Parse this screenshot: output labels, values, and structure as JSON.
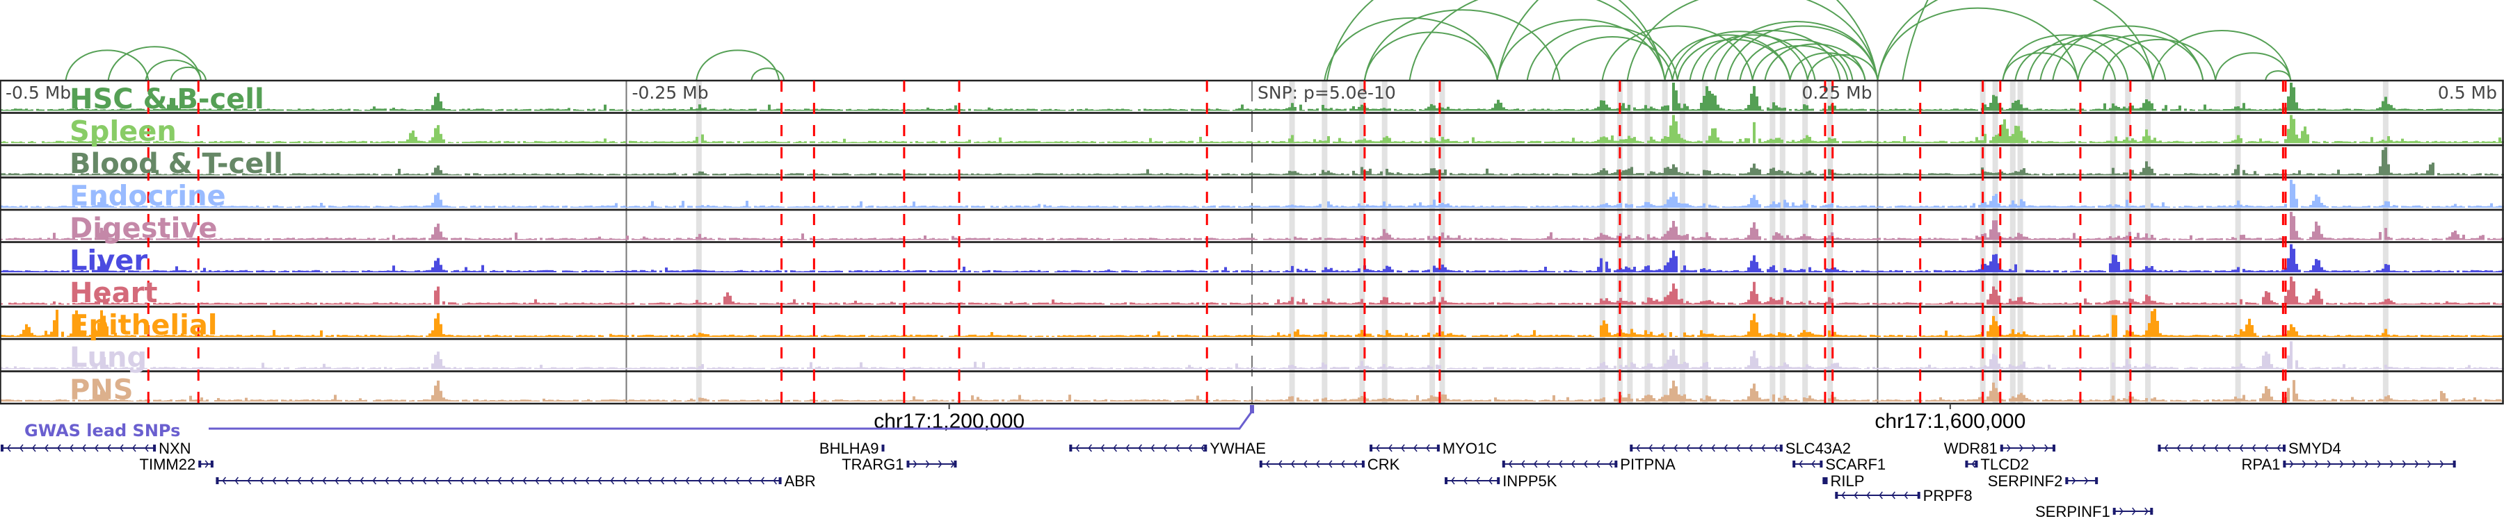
{
  "chart_data": {
    "type": "area",
    "title": "",
    "x_unit": "kb from lead SNP",
    "xlim": [
      -500,
      500
    ],
    "axis_labels": [
      {
        "kb": -500,
        "text": "-0.5 Mb",
        "anchor": "start"
      },
      {
        "kb": -250,
        "text": "-0.25 Mb",
        "anchor": "start"
      },
      {
        "kb": 0,
        "text": "SNP: p=5.0e-10",
        "anchor": "start"
      },
      {
        "kb": 250,
        "text": "0.25 Mb",
        "anchor": "end"
      },
      {
        "kb": 500,
        "text": "0.5 Mb",
        "anchor": "end"
      }
    ],
    "axis_gridlines_kb": [
      -250,
      0,
      250
    ],
    "tracks": [
      {
        "name": "HSC & B-cell",
        "color": "#55a055",
        "peaks": [
          [
            -432,
            0.45
          ],
          [
            -326,
            0.6
          ],
          [
            98,
            0.35
          ],
          [
            140,
            0.2
          ],
          [
            168,
            0.95
          ],
          [
            181,
            0.6
          ],
          [
            184,
            0.55
          ],
          [
            200,
            0.85
          ],
          [
            296,
            0.4
          ],
          [
            305,
            0.3
          ],
          [
            357,
            0.3
          ],
          [
            415,
            1.0
          ],
          [
            452,
            0.3
          ]
        ]
      },
      {
        "name": "Spleen",
        "color": "#88cc66",
        "peaks": [
          [
            -326,
            0.6
          ],
          [
            -336,
            0.4
          ],
          [
            168,
            1.0
          ],
          [
            184,
            0.5
          ],
          [
            200,
            0.7
          ],
          [
            300,
            0.8
          ],
          [
            305,
            0.5
          ],
          [
            357,
            0.3
          ],
          [
            415,
            1.0
          ],
          [
            420,
            0.5
          ]
        ]
      },
      {
        "name": "Blood & T-cell",
        "color": "#668866",
        "peaks": [
          [
            -326,
            0.3
          ],
          [
            168,
            0.3
          ],
          [
            200,
            0.35
          ],
          [
            357,
            0.35
          ],
          [
            394,
            0.2
          ],
          [
            452,
            0.9
          ],
          [
            471,
            0.4
          ]
        ]
      },
      {
        "name": "Endocrine",
        "color": "#99bbff",
        "peaks": [
          [
            -460,
            0.3
          ],
          [
            -326,
            0.5
          ],
          [
            168,
            0.5
          ],
          [
            200,
            0.4
          ],
          [
            296,
            0.3
          ],
          [
            415,
            1.0
          ],
          [
            425,
            0.45
          ]
        ]
      },
      {
        "name": "Digestive",
        "color": "#c488a8",
        "peaks": [
          [
            -460,
            0.4
          ],
          [
            -326,
            0.55
          ],
          [
            168,
            0.6
          ],
          [
            200,
            0.6
          ],
          [
            296,
            0.55
          ],
          [
            415,
            1.0
          ],
          [
            425,
            0.6
          ],
          [
            480,
            0.3
          ]
        ]
      },
      {
        "name": "Liver",
        "color": "#4b4be0",
        "peaks": [
          [
            -460,
            0.35
          ],
          [
            -326,
            0.45
          ],
          [
            140,
            0.4
          ],
          [
            168,
            0.7
          ],
          [
            200,
            0.55
          ],
          [
            296,
            0.5
          ],
          [
            344,
            0.6
          ],
          [
            415,
            1.0
          ],
          [
            425,
            0.45
          ]
        ]
      },
      {
        "name": "Heart",
        "color": "#d46a7a",
        "peaks": [
          [
            -460,
            0.45
          ],
          [
            -326,
            0.6
          ],
          [
            -210,
            0.4
          ],
          [
            168,
            0.7
          ],
          [
            200,
            0.6
          ],
          [
            296,
            0.6
          ],
          [
            405,
            0.45
          ],
          [
            415,
            1.0
          ],
          [
            425,
            0.55
          ]
        ]
      },
      {
        "name": "Epithelial",
        "color": "#ff9f0f",
        "peaks": [
          [
            -490,
            0.4
          ],
          [
            -478,
            0.9
          ],
          [
            -470,
            0.9
          ],
          [
            -460,
            0.9
          ],
          [
            -326,
            0.8
          ],
          [
            140,
            0.5
          ],
          [
            200,
            0.8
          ],
          [
            296,
            0.6
          ],
          [
            344,
            0.7
          ],
          [
            360,
            1.0
          ],
          [
            398,
            0.6
          ],
          [
            415,
            0.4
          ]
        ]
      },
      {
        "name": "Lung",
        "color": "#d8d0e8",
        "peaks": [
          [
            -460,
            0.5
          ],
          [
            -326,
            0.6
          ],
          [
            168,
            0.6
          ],
          [
            200,
            0.6
          ],
          [
            296,
            0.5
          ],
          [
            405,
            0.6
          ],
          [
            415,
            1.0
          ]
        ]
      },
      {
        "name": "PNS",
        "color": "#dcb08c",
        "peaks": [
          [
            -460,
            0.35
          ],
          [
            -326,
            0.7
          ],
          [
            168,
            0.7
          ],
          [
            200,
            0.6
          ],
          [
            296,
            0.5
          ],
          [
            405,
            0.5
          ],
          [
            415,
            0.9
          ],
          [
            475,
            0.35
          ]
        ]
      }
    ],
    "highlight_regions_kb": [
      -221,
      16,
      29,
      44,
      53,
      72,
      76,
      140,
      147,
      151,
      158,
      165,
      172,
      181,
      208,
      212,
      221,
      231,
      292,
      297,
      304,
      307,
      344,
      350,
      358,
      394,
      453
    ],
    "gwas_snps_kb": [
      -441,
      -421,
      -188,
      -175,
      -139,
      -117,
      -18,
      45,
      75,
      147,
      229,
      232,
      267,
      292,
      299,
      331,
      351,
      412,
      413
    ],
    "loops_kb": [
      [
        -474,
        -441
      ],
      [
        -457,
        -420
      ],
      [
        -442,
        -420
      ],
      [
        -432,
        -418
      ],
      [
        -222,
        -189
      ],
      [
        -200,
        -187
      ],
      [
        29,
        98
      ],
      [
        45,
        98
      ],
      [
        45,
        123
      ],
      [
        98,
        165
      ],
      [
        98,
        250
      ],
      [
        120,
        168
      ],
      [
        150,
        250
      ],
      [
        165,
        215
      ],
      [
        170,
        215
      ],
      [
        175,
        225
      ],
      [
        180,
        235
      ],
      [
        185,
        250
      ],
      [
        190,
        250
      ],
      [
        195,
        240
      ],
      [
        200,
        238
      ],
      [
        205,
        245
      ],
      [
        168,
        222
      ],
      [
        140,
        200
      ],
      [
        63,
        165
      ],
      [
        30,
        165
      ],
      [
        110,
        170
      ],
      [
        215,
        245
      ],
      [
        222,
        250
      ],
      [
        250,
        330
      ],
      [
        250,
        360
      ],
      [
        300,
        330
      ],
      [
        300,
        350
      ],
      [
        305,
        345
      ],
      [
        310,
        360
      ],
      [
        315,
        365
      ],
      [
        320,
        380
      ],
      [
        330,
        380
      ],
      [
        340,
        385
      ],
      [
        360,
        415
      ],
      [
        385,
        415
      ],
      [
        405,
        415
      ],
      [
        260,
        560
      ]
    ],
    "chrom_ticks": [
      {
        "kb": -121,
        "text": "chr17:1,200,000"
      },
      {
        "kb": 279,
        "text": "chr17:1,600,000"
      }
    ],
    "gwas_track": {
      "label": "GWAS lead SNPs",
      "color": "#6a5fcf",
      "snp_kb": 0
    },
    "genes": [
      {
        "name": "NXN",
        "start": -500,
        "end": -438,
        "strand": "-",
        "row": 0,
        "label_side": "right"
      },
      {
        "name": "TIMM22",
        "start": -421,
        "end": -415,
        "strand": "+",
        "row": 1,
        "label_side": "left"
      },
      {
        "name": "ABR",
        "start": -414,
        "end": -188,
        "strand": "-",
        "row": 2,
        "label_side": "right"
      },
      {
        "name": "BHLHA9",
        "start": -148,
        "end": -147,
        "strand": "+",
        "row": 0,
        "label_side": "left"
      },
      {
        "name": "TRARG1",
        "start": -138,
        "end": -118,
        "strand": "+",
        "row": 1,
        "label_side": "left"
      },
      {
        "name": "YWHAE",
        "start": -73,
        "end": -18,
        "strand": "-",
        "row": 0,
        "label_side": "right"
      },
      {
        "name": "CRK",
        "start": 3,
        "end": 45,
        "strand": "-",
        "row": 1,
        "label_side": "right"
      },
      {
        "name": "MYO1C",
        "start": 47,
        "end": 75,
        "strand": "-",
        "row": 0,
        "label_side": "right"
      },
      {
        "name": "INPP5K",
        "start": 77,
        "end": 99,
        "strand": "-",
        "row": 2,
        "label_side": "right"
      },
      {
        "name": "PITPNA",
        "start": 100,
        "end": 146,
        "strand": "-",
        "row": 1,
        "label_side": "right"
      },
      {
        "name": "SLC43A2",
        "start": 151,
        "end": 212,
        "strand": "-",
        "row": 0,
        "label_side": "right"
      },
      {
        "name": "SCARF1",
        "start": 216,
        "end": 228,
        "strand": "-",
        "row": 1,
        "label_side": "right"
      },
      {
        "name": "RILP",
        "start": 228,
        "end": 230,
        "strand": "-",
        "row": 2,
        "label_side": "right"
      },
      {
        "name": "PRPF8",
        "start": 233,
        "end": 267,
        "strand": "-",
        "row": 3,
        "label_side": "right"
      },
      {
        "name": "WDR81",
        "start": 299,
        "end": 321,
        "strand": "+",
        "row": 0,
        "label_side": "left"
      },
      {
        "name": "TLCD2",
        "start": 285,
        "end": 290,
        "strand": "-",
        "row": 1,
        "label_side": "right"
      },
      {
        "name": "SERPINF2",
        "start": 325,
        "end": 338,
        "strand": "+",
        "row": 2,
        "label_side": "left"
      },
      {
        "name": "SERPINF1",
        "start": 344,
        "end": 360,
        "strand": "+",
        "row": 4,
        "label_side": "left"
      },
      {
        "name": "SMYD4",
        "start": 362,
        "end": 413,
        "strand": "-",
        "row": 0,
        "label_side": "right"
      },
      {
        "name": "RPA1",
        "start": 412,
        "end": 481,
        "strand": "+",
        "row": 1,
        "label_side": "left"
      }
    ],
    "colors": {
      "loop": "#55a055",
      "snp_line": "#ff0000",
      "highlight": "#e2e2e2",
      "gene": "#1a1a6e",
      "gridline": "#777777"
    }
  }
}
